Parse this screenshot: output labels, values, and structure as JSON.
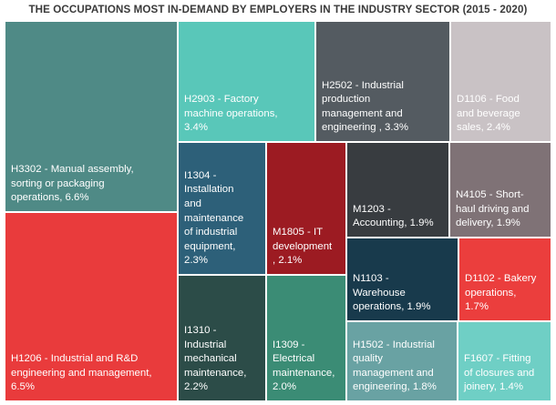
{
  "chart_data": {
    "type": "treemap",
    "title": "THE OCCUPATIONS MOST IN-DEMAND BY EMPLOYERS IN THE INDUSTRY SECTOR (2015 - 2020)",
    "items": [
      {
        "id": "H3302",
        "label": "H3302 - Manual assembly, sorting or packaging operations, 6.6%",
        "value": 6.6,
        "color": "#4f8a86"
      },
      {
        "id": "H2903",
        "label": "H2903 - Factory machine operations, 3.4%",
        "value": 3.4,
        "color": "#59c7b9"
      },
      {
        "id": "H2502",
        "label": "H2502 - Industrial production management and engineering , 3.3%",
        "value": 3.3,
        "color": "#545b61"
      },
      {
        "id": "D1106",
        "label": "D1106 - Food and beverage sales, 2.4%",
        "value": 2.4,
        "color": "#c9c2c5"
      },
      {
        "id": "H1206",
        "label": "H1206 - Industrial and R&D engineering and management, 6.5%",
        "value": 6.5,
        "color": "#e93b3c"
      },
      {
        "id": "I1304",
        "label": "I1304 - Installation and maintenance of industrial equipment, 2.3%",
        "value": 2.3,
        "color": "#2d6079"
      },
      {
        "id": "M1805",
        "label": "M1805 - IT development , 2.1%",
        "value": 2.1,
        "color": "#9c1b22"
      },
      {
        "id": "M1203",
        "label": "M1203 - Accounting, 1.9%",
        "value": 1.9,
        "color": "#383c40"
      },
      {
        "id": "N4105",
        "label": "N4105 - Short-haul driving and delivery, 1.9%",
        "value": 1.9,
        "color": "#7f7276"
      },
      {
        "id": "N1103",
        "label": "N1103 - Warehouse operations, 1.9%",
        "value": 1.9,
        "color": "#183a4c"
      },
      {
        "id": "D1102",
        "label": "D1102 - Bakery operations, 1.7%",
        "value": 1.7,
        "color": "#eb3e3d"
      },
      {
        "id": "I1310",
        "label": "I1310 - Industrial mechanical maintenance, 2.2%",
        "value": 2.2,
        "color": "#2c4c48"
      },
      {
        "id": "I1309",
        "label": "I1309 - Electrical maintenance, 2.0%",
        "value": 2.0,
        "color": "#3b8c75"
      },
      {
        "id": "H1502",
        "label": "H1502 - Industrial quality management and engineering, 1.8%",
        "value": 1.8,
        "color": "#69a2a3"
      },
      {
        "id": "F1607",
        "label": "F1607 - Fitting of closures and joinery, 1.4%",
        "value": 1.4,
        "color": "#6fcfc5"
      }
    ]
  }
}
